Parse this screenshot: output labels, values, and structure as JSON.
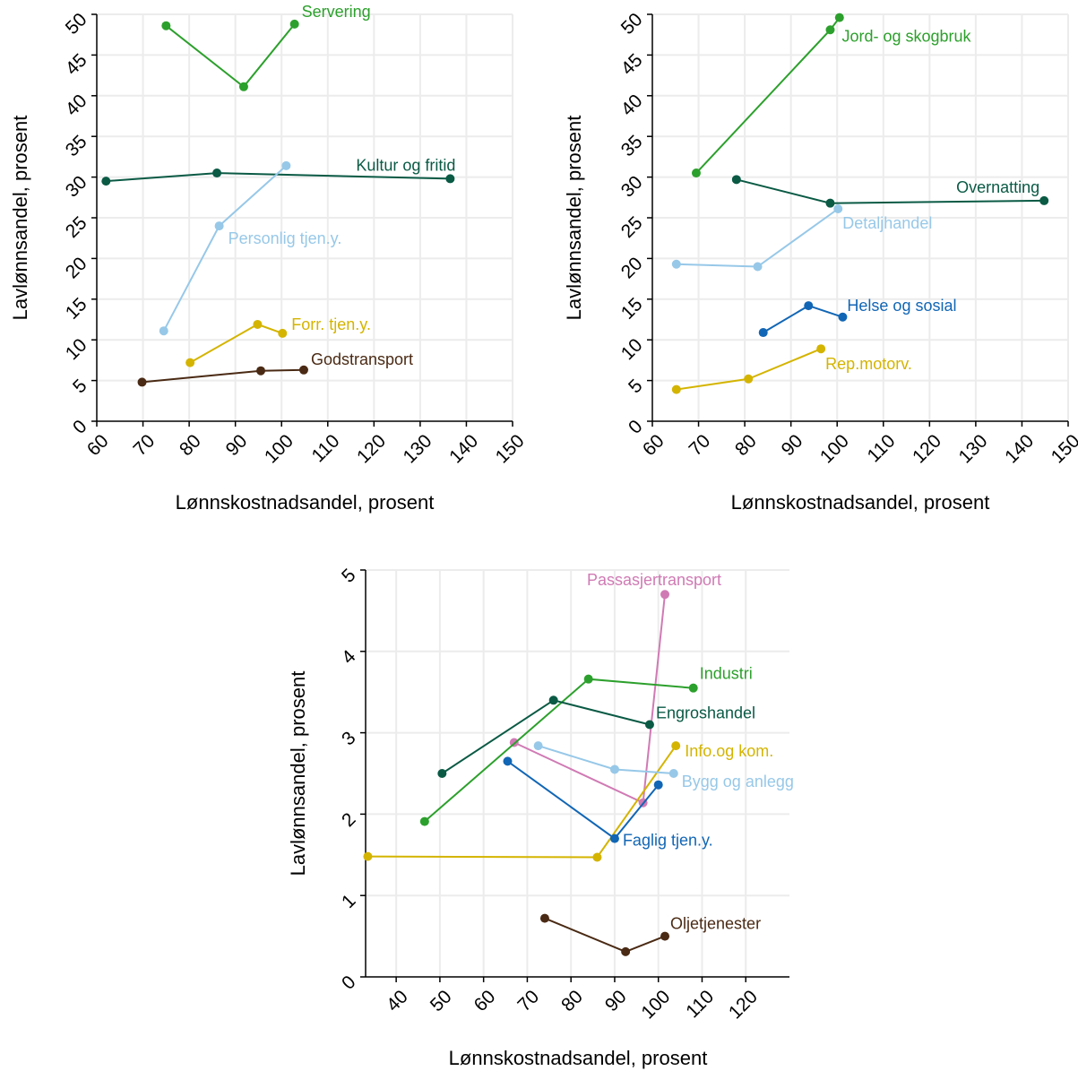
{
  "chart_data": [
    {
      "type": "line",
      "xlabel": "Lønnskostnadsandel, prosent",
      "ylabel": "Lavlønnsandel, prosent",
      "xlim": [
        60,
        150
      ],
      "ylim": [
        0,
        50
      ],
      "xticks": [
        60,
        70,
        80,
        90,
        100,
        110,
        120,
        130,
        140,
        150
      ],
      "yticks": [
        0,
        5,
        10,
        15,
        20,
        25,
        30,
        35,
        40,
        45,
        50
      ],
      "grid": true,
      "series": [
        {
          "name": "Servering",
          "color": "#2ca02c",
          "points": [
            [
              75,
              48.6
            ],
            [
              91.8,
              41.1
            ],
            [
              102.8,
              48.8
            ]
          ],
          "label_at": 2
        },
        {
          "name": "Kultur og fritid",
          "color": "#0a5a44",
          "points": [
            [
              62,
              29.5
            ],
            [
              86,
              30.5
            ],
            [
              136.5,
              29.8
            ]
          ],
          "label_at": 2
        },
        {
          "name": "Personlig tjen.y.",
          "color": "#97c8e8",
          "points": [
            [
              74.5,
              11.1
            ],
            [
              86.5,
              24
            ],
            [
              101,
              31.4
            ]
          ],
          "label_at": 1
        },
        {
          "name": "Forr. tjen.y.",
          "color": "#d4b400",
          "points": [
            [
              80.2,
              7.2
            ],
            [
              94.8,
              11.9
            ],
            [
              100.2,
              10.8
            ]
          ],
          "label_at": 2
        },
        {
          "name": "Godstransport",
          "color": "#4a2a14",
          "points": [
            [
              69.8,
              4.8
            ],
            [
              95.5,
              6.2
            ],
            [
              104.8,
              6.3
            ]
          ],
          "label_at": 2
        }
      ]
    },
    {
      "type": "line",
      "xlabel": "Lønnskostnadsandel, prosent",
      "ylabel": "Lavlønnsandel, prosent",
      "xlim": [
        60,
        150
      ],
      "ylim": [
        0,
        50
      ],
      "xticks": [
        60,
        70,
        80,
        90,
        100,
        110,
        120,
        130,
        140,
        150
      ],
      "yticks": [
        0,
        5,
        10,
        15,
        20,
        25,
        30,
        35,
        40,
        45,
        50
      ],
      "grid": true,
      "series": [
        {
          "name": "Jord- og skogbruk",
          "color": "#2ca02c",
          "points": [
            [
              69.5,
              30.5
            ],
            [
              98.5,
              48.1
            ],
            [
              100.5,
              49.6
            ]
          ],
          "label_at": 1
        },
        {
          "name": "Overnatting",
          "color": "#0a5a44",
          "points": [
            [
              78.2,
              29.7
            ],
            [
              98.5,
              26.8
            ],
            [
              144.8,
              27.1
            ]
          ],
          "label_at": 2
        },
        {
          "name": "Detaljhandel",
          "color": "#97c8e8",
          "points": [
            [
              65.2,
              19.3
            ],
            [
              82.8,
              19
            ],
            [
              100.2,
              26.1
            ]
          ],
          "label_at": 2
        },
        {
          "name": "Helse og sosial",
          "color": "#1166b5",
          "points": [
            [
              84,
              10.9
            ],
            [
              93.8,
              14.2
            ],
            [
              101.2,
              12.8
            ]
          ],
          "label_at": 2
        },
        {
          "name": "Rep.motorv.",
          "color": "#d4b400",
          "points": [
            [
              65.2,
              3.9
            ],
            [
              80.8,
              5.2
            ],
            [
              96.5,
              8.9
            ]
          ],
          "label_at": 2
        }
      ]
    },
    {
      "type": "line",
      "xlabel": "Lønnskostnadsandel, prosent",
      "ylabel": "Lavlønnsandel, prosent",
      "xlim": [
        33,
        130
      ],
      "ylim": [
        0,
        5
      ],
      "xticks": [
        40,
        50,
        60,
        70,
        80,
        90,
        100,
        110,
        120
      ],
      "yticks": [
        0,
        1,
        2,
        3,
        4,
        5
      ],
      "grid": true,
      "series": [
        {
          "name": "Passasjertransport",
          "color": "#d07ab4",
          "points": [
            [
              67,
              2.88
            ],
            [
              96.5,
              2.14
            ],
            [
              101.5,
              4.7
            ]
          ],
          "label_at": 2
        },
        {
          "name": "Industri",
          "color": "#2ca02c",
          "points": [
            [
              46.5,
              1.91
            ],
            [
              84,
              3.66
            ],
            [
              108,
              3.55
            ]
          ],
          "label_at": 2
        },
        {
          "name": "Engroshandel",
          "color": "#0a5a44",
          "points": [
            [
              50.5,
              2.5
            ],
            [
              76,
              3.4
            ],
            [
              98,
              3.1
            ]
          ],
          "label_at": 2
        },
        {
          "name": "Info.og kom.",
          "color": "#d4b400",
          "points": [
            [
              33.5,
              1.48
            ],
            [
              86,
              1.47
            ],
            [
              104,
              2.84
            ]
          ],
          "label_at": 2
        },
        {
          "name": "Bygg og anlegg",
          "color": "#97c8e8",
          "points": [
            [
              72.5,
              2.84
            ],
            [
              90,
              2.55
            ],
            [
              103.5,
              2.5
            ]
          ],
          "label_at": 2
        },
        {
          "name": "Faglig tjen.y.",
          "color": "#1166b5",
          "points": [
            [
              65.5,
              2.65
            ],
            [
              90,
              1.7
            ],
            [
              100,
              2.36
            ]
          ],
          "label_at": 1
        },
        {
          "name": "Oljetjenester",
          "color": "#4a2a14",
          "points": [
            [
              74,
              0.72
            ],
            [
              92.5,
              0.31
            ],
            [
              101.5,
              0.5
            ]
          ],
          "label_at": 2
        }
      ]
    }
  ]
}
